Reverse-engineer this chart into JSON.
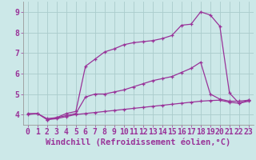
{
  "background_color": "#cce8e8",
  "line_color": "#993399",
  "grid_color": "#aacccc",
  "xlabel": "Windchill (Refroidissement éolien,°C)",
  "xlim": [
    -0.5,
    23.5
  ],
  "ylim": [
    3.5,
    9.5
  ],
  "xticks": [
    0,
    1,
    2,
    3,
    4,
    5,
    6,
    7,
    8,
    9,
    10,
    11,
    12,
    13,
    14,
    15,
    16,
    17,
    18,
    19,
    20,
    21,
    22,
    23
  ],
  "yticks": [
    4,
    5,
    6,
    7,
    8,
    9
  ],
  "line1_x": [
    0,
    1,
    2,
    3,
    4,
    5,
    6,
    7,
    8,
    9,
    10,
    11,
    12,
    13,
    14,
    15,
    16,
    17,
    18,
    19,
    20,
    21,
    22,
    23
  ],
  "line1_y": [
    4.0,
    4.05,
    3.75,
    3.8,
    3.9,
    4.0,
    4.05,
    4.1,
    4.15,
    4.2,
    4.25,
    4.3,
    4.35,
    4.4,
    4.45,
    4.5,
    4.55,
    4.6,
    4.65,
    4.68,
    4.7,
    4.6,
    4.55,
    4.65
  ],
  "line2_x": [
    0,
    1,
    2,
    3,
    4,
    5,
    6,
    7,
    8,
    9,
    10,
    11,
    12,
    13,
    14,
    15,
    16,
    17,
    18,
    19,
    20,
    21,
    22,
    23
  ],
  "line2_y": [
    4.05,
    4.05,
    3.8,
    3.85,
    3.95,
    4.05,
    4.85,
    5.0,
    5.0,
    5.1,
    5.2,
    5.35,
    5.5,
    5.65,
    5.75,
    5.85,
    6.05,
    6.25,
    6.55,
    5.0,
    4.75,
    4.65,
    4.65,
    4.7
  ],
  "line3_x": [
    2,
    3,
    4,
    5,
    6,
    7,
    8,
    9,
    10,
    11,
    12,
    13,
    14,
    15,
    16,
    17,
    18,
    19,
    20,
    21,
    22,
    23
  ],
  "line3_y": [
    3.75,
    3.85,
    4.05,
    4.15,
    6.35,
    6.7,
    7.05,
    7.2,
    7.4,
    7.5,
    7.55,
    7.6,
    7.7,
    7.85,
    8.35,
    8.4,
    9.0,
    8.85,
    8.3,
    5.05,
    4.55,
    4.7
  ],
  "font_color": "#993399",
  "xlabel_fontsize": 7.5,
  "tick_fontsize": 7.0
}
